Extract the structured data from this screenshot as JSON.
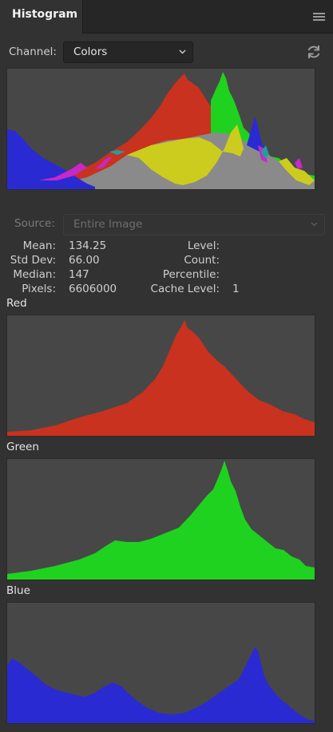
{
  "panel": {
    "tab_title": "Histogram",
    "menu_icon": "hamburger-menu-icon"
  },
  "channel": {
    "label": "Channel:",
    "value": "Colors",
    "refresh_icon": "refresh-icon"
  },
  "source": {
    "label": "Source:",
    "value": "Entire Image"
  },
  "stats": {
    "mean_label": "Mean:",
    "mean": "134.25",
    "std_label": "Std Dev:",
    "std": "66.00",
    "median_label": "Median:",
    "median": "147",
    "pixels_label": "Pixels:",
    "pixels": "6606000",
    "level_label": "Level:",
    "count_label": "Count:",
    "percentile_label": "Percentile:",
    "cache_label": "Cache Level:",
    "cache": "1"
  },
  "histograms": {
    "red_label": "Red",
    "green_label": "Green",
    "blue_label": "Blue"
  },
  "colors": {
    "panel_bg": "#323232",
    "graph_bg": "#474747",
    "red": "#c8321e",
    "green": "#1fd21f",
    "blue": "#2a2ad2",
    "yellow": "#cccc1e",
    "magenta": "#c828c8",
    "cyan": "#1ea0a0",
    "gray": "#8a8a8a"
  }
}
